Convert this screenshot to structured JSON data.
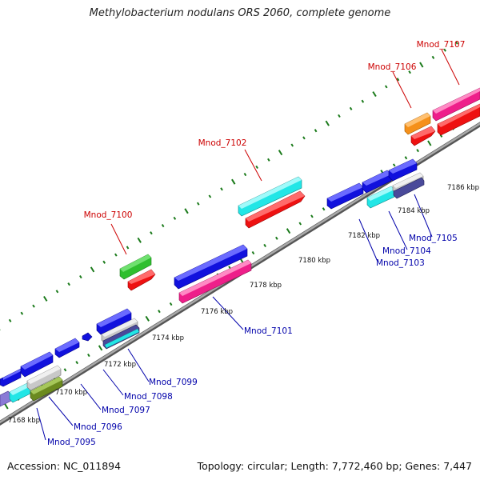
{
  "title": "Methylobacterium nodulans ORS 2060, complete genome",
  "footer": {
    "accession_label": "Accession:",
    "accession": "NC_011894",
    "topology_label": "Topology:",
    "topology": "circular",
    "length_label": "Length:",
    "length": "7,772,460 bp",
    "genes_label": "Genes:",
    "genes": "7,447"
  },
  "colors": {
    "backbone": "#8a8a8a",
    "scale_tick": "#1a7a1a",
    "label_forward": "#cc0000",
    "label_reverse": "#0000aa"
  },
  "scale_labels": [
    "7168 kbp",
    "7170 kbp",
    "7172 kbp",
    "7174 kbp",
    "7176 kbp",
    "7178 kbp",
    "7180 kbp",
    "7182 kbp",
    "7184 kbp",
    "7186 kbp"
  ],
  "gene_labels": {
    "forward": [
      "Mnod_7100",
      "Mnod_7102",
      "Mnod_7106",
      "Mnod_7107"
    ],
    "reverse": [
      "Mnod_7095",
      "Mnod_7096",
      "Mnod_7097",
      "Mnod_7098",
      "Mnod_7099",
      "Mnod_7101",
      "Mnod_7103",
      "Mnod_7104",
      "Mnod_7105"
    ]
  },
  "legend_icons": [
    "gene-arrow-icon"
  ]
}
